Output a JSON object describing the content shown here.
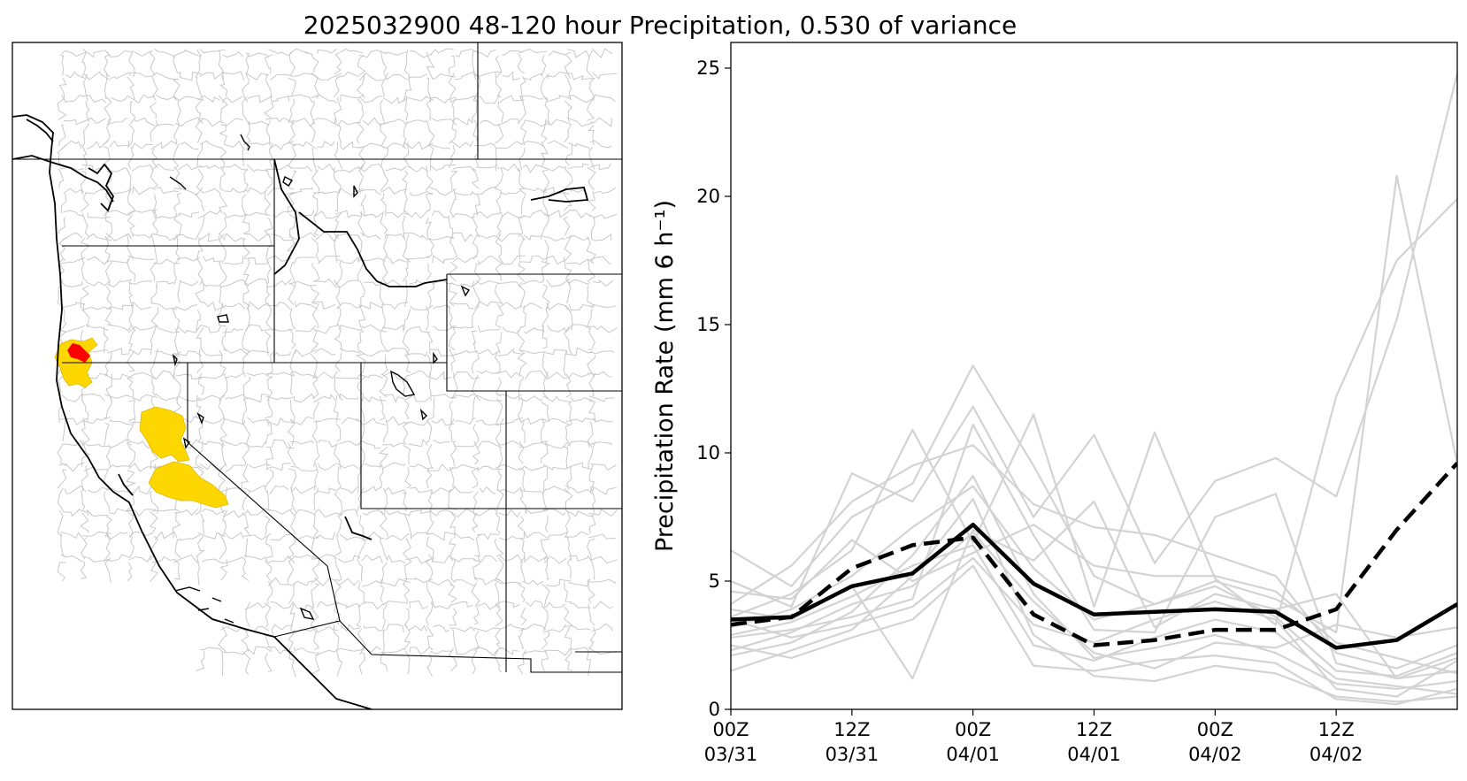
{
  "title": "2025032900 48-120 hour Precipitation, 0.530 of variance",
  "colors": {
    "ensemble": "#d3d3d3",
    "mean": "#000000",
    "highlight_region": "#ffd700",
    "core_region": "#ff0000",
    "basin_lines": "#c8c8c8",
    "borders": "#000000"
  },
  "map_panel": {
    "description_regions": [
      "northern-california-coast-basins",
      "sacramento-san-joaquin-basins"
    ]
  },
  "chart_data": {
    "type": "line",
    "ylabel": "Precipitation Rate (mm 6 h⁻¹)",
    "ylim": [
      0,
      26
    ],
    "yticks": [
      0,
      5,
      10,
      15,
      20,
      25
    ],
    "xlim": [
      0,
      18
    ],
    "xticks": [
      {
        "value": 0,
        "line1": "00Z",
        "line2": "03/31"
      },
      {
        "value": 3,
        "line1": "12Z",
        "line2": "03/31"
      },
      {
        "value": 6,
        "line1": "00Z",
        "line2": "04/01"
      },
      {
        "value": 9,
        "line1": "12Z",
        "line2": "04/01"
      },
      {
        "value": 12,
        "line1": "00Z",
        "line2": "04/02"
      },
      {
        "value": 15,
        "line1": "12Z",
        "line2": "04/02"
      }
    ],
    "x": [
      0,
      1.5,
      3,
      4.5,
      6,
      7.5,
      9,
      10.5,
      12,
      13.5,
      15,
      16.5,
      18
    ],
    "series": [
      {
        "style": "solid-black",
        "values": [
          3.5,
          3.6,
          4.8,
          5.3,
          7.2,
          4.9,
          3.7,
          3.8,
          3.9,
          3.8,
          2.4,
          2.7,
          4.1
        ]
      },
      {
        "style": "dashed-black",
        "values": [
          3.3,
          3.6,
          5.5,
          6.4,
          6.7,
          3.7,
          2.5,
          2.7,
          3.1,
          3.1,
          3.9,
          7.0,
          9.6
        ]
      },
      {
        "style": "ensemble",
        "values": [
          6.2,
          4.8,
          7.5,
          8.8,
          13.4,
          9.5,
          5.2,
          4.1,
          5.0,
          4.3,
          3.0,
          20.8,
          9.6
        ]
      },
      {
        "style": "ensemble",
        "values": [
          5.0,
          4.0,
          9.2,
          8.1,
          11.8,
          7.5,
          10.7,
          5.7,
          8.9,
          9.8,
          8.3,
          15.2,
          24.8
        ]
      },
      {
        "style": "ensemble",
        "values": [
          3.6,
          4.5,
          6.2,
          10.9,
          6.5,
          11.5,
          4.0,
          10.8,
          5.1,
          3.3,
          12.2,
          17.5,
          19.9
        ]
      },
      {
        "style": "ensemble",
        "values": [
          2.8,
          3.1,
          3.6,
          4.3,
          11.1,
          6.8,
          3.1,
          3.0,
          7.5,
          8.4,
          1.8,
          1.2,
          2.0
        ]
      },
      {
        "style": "ensemble",
        "values": [
          4.1,
          5.6,
          8.1,
          9.5,
          10.3,
          8.0,
          7.1,
          6.8,
          6.0,
          5.2,
          2.2,
          1.6,
          2.5
        ]
      },
      {
        "style": "ensemble",
        "values": [
          1.5,
          2.3,
          3.1,
          5.2,
          8.2,
          2.9,
          1.3,
          1.1,
          1.7,
          1.4,
          0.5,
          0.3,
          0.5
        ]
      },
      {
        "style": "ensemble",
        "values": [
          3.9,
          3.5,
          4.8,
          1.2,
          7.0,
          5.8,
          8.1,
          3.2,
          4.5,
          3.9,
          4.5,
          1.2,
          1.5
        ]
      },
      {
        "style": "ensemble",
        "values": [
          2.1,
          2.6,
          3.8,
          6.0,
          9.1,
          4.5,
          2.0,
          2.4,
          2.9,
          2.2,
          1.0,
          0.8,
          1.1
        ]
      },
      {
        "style": "ensemble",
        "values": [
          3.2,
          3.9,
          5.2,
          7.1,
          8.7,
          5.5,
          3.5,
          4.1,
          4.8,
          3.6,
          1.5,
          1.3,
          2.2
        ]
      },
      {
        "style": "ensemble",
        "values": [
          2.5,
          2.0,
          2.8,
          3.5,
          5.6,
          1.7,
          1.5,
          1.9,
          2.1,
          1.8,
          0.4,
          0.2,
          0.8
        ]
      },
      {
        "style": "ensemble",
        "values": [
          4.6,
          4.3,
          6.6,
          5.0,
          6.1,
          7.2,
          5.6,
          5.2,
          5.2,
          4.6,
          2.6,
          2.0,
          1.4
        ]
      },
      {
        "style": "ensemble",
        "values": [
          2.9,
          3.4,
          4.4,
          5.6,
          6.4,
          2.5,
          1.9,
          2.8,
          3.5,
          3.0,
          1.2,
          0.9,
          0.6
        ]
      },
      {
        "style": "ensemble",
        "values": [
          3.5,
          2.8,
          3.3,
          4.0,
          5.9,
          3.3,
          2.6,
          3.5,
          4.2,
          3.5,
          0.8,
          0.5,
          1.9
        ]
      },
      {
        "style": "ensemble",
        "values": [
          2.3,
          3.0,
          4.1,
          4.8,
          6.9,
          4.2,
          2.2,
          1.6,
          2.6,
          2.4,
          3.3,
          2.8,
          3.2
        ]
      }
    ]
  }
}
